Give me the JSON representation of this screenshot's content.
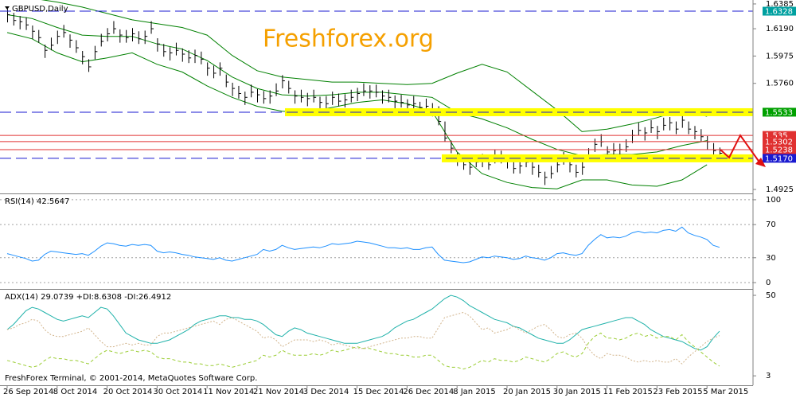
{
  "chart_data": [
    {
      "type": "ohlc",
      "title": "GBPUSD,Daily",
      "watermark": "Freshforex.org",
      "color": "#000000",
      "categories": [
        "26 Sep 2014",
        null,
        null,
        null,
        null,
        null,
        null,
        null,
        "8 Oct 2014",
        null,
        null,
        null,
        null,
        null,
        null,
        null,
        "20 Oct 2014",
        null,
        null,
        null,
        null,
        null,
        null,
        null,
        "30 Oct 2014",
        null,
        null,
        null,
        null,
        null,
        null,
        null,
        "11 Nov 2014",
        null,
        null,
        null,
        null,
        null,
        null,
        null,
        "21 Nov 2014",
        null,
        null,
        null,
        null,
        null,
        null,
        null,
        "3 Dec 2014",
        null,
        null,
        null,
        null,
        null,
        null,
        null,
        "15 Dec 2014",
        null,
        null,
        null,
        null,
        null,
        null,
        null,
        "26 Dec 2014",
        null,
        null,
        null,
        null,
        null,
        null,
        null,
        "8 Jan 2015",
        null,
        null,
        null,
        null,
        null,
        null,
        null,
        "20 Jan 2015",
        null,
        null,
        null,
        null,
        null,
        null,
        null,
        "30 Jan 2015",
        null,
        null,
        null,
        null,
        null,
        null,
        null,
        "11 Feb 2015",
        null,
        null,
        null,
        null,
        null,
        null,
        null,
        "23 Feb 2015",
        null,
        null,
        null,
        null,
        null,
        null,
        null,
        "5 Mar 2015",
        null,
        null
      ],
      "high": [
        1.6345,
        1.6315,
        1.629,
        1.628,
        1.6215,
        1.618,
        1.6065,
        1.612,
        1.6175,
        1.622,
        1.6145,
        1.61,
        1.6015,
        1.595,
        1.6055,
        1.615,
        1.6195,
        1.625,
        1.6185,
        1.618,
        1.6195,
        1.617,
        1.6175,
        1.625,
        1.6115,
        1.607,
        1.6045,
        1.608,
        1.6035,
        1.602,
        1.6025,
        1.601,
        1.5925,
        1.59,
        1.5925,
        1.583,
        1.5765,
        1.574,
        1.5695,
        1.575,
        1.5715,
        1.57,
        1.5705,
        1.576,
        1.5825,
        1.578,
        1.5705,
        1.571,
        1.5685,
        1.571,
        1.5655,
        1.566,
        1.5695,
        1.568,
        1.5675,
        1.571,
        1.5725,
        1.576,
        1.5745,
        1.575,
        1.5705,
        1.571,
        1.5665,
        1.567,
        1.5635,
        1.566,
        1.5615,
        1.564,
        1.5605,
        1.558,
        1.546,
        1.531,
        1.5215,
        1.518,
        1.5145,
        1.52,
        1.5205,
        1.518,
        1.5235,
        1.523,
        1.5195,
        1.515,
        1.5155,
        1.52,
        1.5145,
        1.512,
        1.5065,
        1.511,
        1.5165,
        1.522,
        1.5165,
        1.512,
        1.5145,
        1.525,
        1.5325,
        1.536,
        1.5265,
        1.529,
        1.5285,
        1.532,
        1.5395,
        1.545,
        1.5415,
        1.547,
        1.5425,
        1.549,
        1.5495,
        1.546,
        1.5515,
        1.546,
        1.5425,
        1.54,
        1.5345,
        1.529,
        1.5255
      ],
      "low": [
        1.624,
        1.6215,
        1.6185,
        1.618,
        1.611,
        1.608,
        1.596,
        1.602,
        1.607,
        1.612,
        1.604,
        1.6,
        1.591,
        1.585,
        1.595,
        1.605,
        1.609,
        1.615,
        1.608,
        1.608,
        1.609,
        1.607,
        1.607,
        1.615,
        1.601,
        1.597,
        1.594,
        1.598,
        1.593,
        1.592,
        1.592,
        1.591,
        1.582,
        1.58,
        1.582,
        1.573,
        1.566,
        1.564,
        1.559,
        1.565,
        1.561,
        1.56,
        1.56,
        1.566,
        1.572,
        1.568,
        1.56,
        1.561,
        1.558,
        1.561,
        1.555,
        1.556,
        1.559,
        1.558,
        1.557,
        1.561,
        1.562,
        1.566,
        1.564,
        1.565,
        1.56,
        1.561,
        1.556,
        1.557,
        1.553,
        1.556,
        1.551,
        1.554,
        1.55,
        1.543,
        1.53,
        1.521,
        1.511,
        1.508,
        1.504,
        1.51,
        1.51,
        1.508,
        1.513,
        1.513,
        1.509,
        1.505,
        1.505,
        1.51,
        1.504,
        1.502,
        1.496,
        1.501,
        1.506,
        1.512,
        1.506,
        1.502,
        1.504,
        1.515,
        1.522,
        1.526,
        1.516,
        1.519,
        1.518,
        1.522,
        1.529,
        1.535,
        1.531,
        1.537,
        1.532,
        1.539,
        1.539,
        1.536,
        1.541,
        1.536,
        1.532,
        1.53,
        1.524,
        1.519,
        1.515
      ],
      "close": [
        1.63,
        1.6255,
        1.6245,
        1.622,
        1.617,
        1.612,
        1.602,
        1.606,
        1.613,
        1.616,
        1.61,
        1.604,
        1.597,
        1.589,
        1.601,
        1.609,
        1.615,
        1.619,
        1.614,
        1.612,
        1.615,
        1.611,
        1.613,
        1.619,
        1.607,
        1.601,
        1.6,
        1.602,
        1.599,
        1.596,
        1.598,
        1.595,
        1.588,
        1.584,
        1.588,
        1.577,
        1.572,
        1.568,
        1.565,
        1.569,
        1.567,
        1.564,
        1.566,
        1.57,
        1.578,
        1.572,
        1.566,
        1.565,
        1.564,
        1.565,
        1.561,
        1.56,
        1.565,
        1.562,
        1.563,
        1.565,
        1.568,
        1.57,
        1.57,
        1.569,
        1.566,
        1.565,
        1.562,
        1.561,
        1.559,
        1.56,
        1.557,
        1.558,
        1.556,
        1.546,
        1.533,
        1.525,
        1.517,
        1.512,
        1.51,
        1.514,
        1.516,
        1.512,
        1.519,
        1.517,
        1.515,
        1.509,
        1.511,
        1.514,
        1.51,
        1.506,
        1.502,
        1.505,
        1.512,
        1.516,
        1.512,
        1.506,
        1.51,
        1.519,
        1.528,
        1.53,
        1.522,
        1.523,
        1.524,
        1.526,
        1.535,
        1.539,
        1.537,
        1.541,
        1.538,
        1.543,
        1.545,
        1.54,
        1.547,
        1.54,
        1.538,
        1.534,
        1.53,
        1.523,
        1.521
      ],
      "bands": {
        "color": "#008000",
        "x": [
          0,
          4,
          8,
          12,
          16,
          20,
          24,
          28,
          32,
          36,
          40,
          44,
          48,
          52,
          56,
          60,
          64,
          68,
          72,
          76,
          80,
          84,
          88,
          92,
          96,
          100,
          104,
          108,
          112
        ],
        "upper": [
          1.645,
          1.643,
          1.64,
          1.636,
          1.631,
          1.626,
          1.623,
          1.62,
          1.614,
          1.598,
          1.586,
          1.581,
          1.579,
          1.577,
          1.577,
          1.576,
          1.575,
          1.576,
          1.584,
          1.591,
          1.585,
          1.57,
          1.555,
          1.538,
          1.54,
          1.544,
          1.549,
          1.555,
          1.55
        ],
        "middle": [
          1.63,
          1.627,
          1.62,
          1.614,
          1.613,
          1.613,
          1.607,
          1.603,
          1.594,
          1.581,
          1.572,
          1.567,
          1.566,
          1.567,
          1.569,
          1.569,
          1.567,
          1.565,
          1.553,
          1.548,
          1.541,
          1.532,
          1.524,
          1.519,
          1.52,
          1.52,
          1.522,
          1.527,
          1.531
        ],
        "lower": [
          1.616,
          1.611,
          1.6,
          1.593,
          1.596,
          1.6,
          1.591,
          1.585,
          1.574,
          1.565,
          1.558,
          1.554,
          1.553,
          1.557,
          1.561,
          1.563,
          1.56,
          1.554,
          1.522,
          1.505,
          1.498,
          1.494,
          1.493,
          1.5,
          1.5,
          1.496,
          1.495,
          1.5,
          1.512
        ]
      },
      "levels": [
        {
          "value": 1.6328,
          "color": "#1a1ad0",
          "box": "#00a0a0",
          "style": "dashed",
          "highlight": false
        },
        {
          "value": 1.5533,
          "color": "#1a1ad0",
          "box": "#00a000",
          "style": "dashed",
          "highlight": true
        },
        {
          "value": 1.535,
          "color": "#e03030",
          "box": "#e03030",
          "style": "solid",
          "highlight": false
        },
        {
          "value": 1.5302,
          "color": "#e03030",
          "box": "#e03030",
          "style": "solid",
          "highlight": false
        },
        {
          "value": 1.5238,
          "color": "#e03030",
          "box": "#e03030",
          "style": "solid",
          "highlight": false
        },
        {
          "value": 1.517,
          "label": "1.5170",
          "color": "#1a1ad0",
          "box": "#1a1ad0",
          "style": "dashed",
          "highlight": true
        }
      ],
      "ylim": [
        1.49,
        1.6416
      ],
      "yticks": [
        1.6385,
        {
          "value": 1.619,
          "label": "1.6190"
        },
        1.5975,
        {
          "value": 1.576,
          "label": "1.5760"
        },
        1.4925
      ],
      "grid": false
    },
    {
      "type": "line",
      "label": "RSI(14) 42.5647",
      "color": "#1e90ff",
      "values": [
        35,
        33,
        31,
        29,
        26,
        27,
        34,
        38,
        37,
        36,
        35,
        34,
        35,
        33,
        38,
        44,
        48,
        47,
        45,
        44,
        46,
        45,
        46,
        45,
        38,
        36,
        37,
        36,
        34,
        33,
        31,
        30,
        29,
        28,
        30,
        27,
        26,
        28,
        30,
        32,
        34,
        40,
        38,
        40,
        45,
        42,
        40,
        41,
        42,
        43,
        42,
        44,
        47,
        46,
        47,
        48,
        50,
        49,
        48,
        46,
        44,
        42,
        42,
        41,
        42,
        40,
        40,
        42,
        43,
        34,
        27,
        26,
        25,
        24,
        25,
        28,
        31,
        30,
        32,
        31,
        30,
        28,
        29,
        32,
        30,
        29,
        27,
        30,
        35,
        36,
        34,
        33,
        35,
        45,
        52,
        58,
        54,
        55,
        54,
        56,
        60,
        62,
        60,
        61,
        60,
        63,
        64,
        62,
        67,
        60,
        57,
        55,
        52,
        45,
        42.5647
      ],
      "ylim": [
        -6.7,
        105.7
      ],
      "yticks": [
        0,
        30,
        70,
        100
      ],
      "grid": true
    },
    {
      "type": "line",
      "label": "ADX(14) 29.0739 +DI:8.6308 -DI:26.4912",
      "footer": "FreshForex Terminal, © 2001-2014, MetaQuotes Software Corp.",
      "series": [
        {
          "color": "#20b2aa",
          "dash": "none",
          "values": [
            30,
            33,
            37,
            41,
            43,
            42,
            40,
            38,
            36,
            35,
            36,
            37,
            38,
            37,
            40,
            43,
            42,
            38,
            33,
            28,
            26,
            24,
            23,
            22,
            22,
            23,
            24,
            26,
            28,
            30,
            33,
            35,
            36,
            37,
            38,
            38,
            37,
            37,
            36,
            36,
            35,
            33,
            30,
            27,
            26,
            29,
            31,
            30,
            28,
            27,
            26,
            25,
            24,
            23,
            22,
            22,
            22,
            23,
            24,
            25,
            26,
            28,
            31,
            33,
            35,
            36,
            38,
            40,
            42,
            45,
            48,
            50,
            49,
            47,
            44,
            42,
            40,
            38,
            36,
            35,
            34,
            32,
            31,
            29,
            27,
            25,
            24,
            23,
            22,
            22,
            24,
            27,
            30,
            31,
            32,
            33,
            34,
            35,
            36,
            37,
            37,
            35,
            33,
            30,
            28,
            26,
            25,
            24,
            23,
            21,
            19,
            18,
            20,
            25,
            29.0739
          ]
        },
        {
          "color": "#9acd32",
          "dash": "4 3",
          "values": [
            12,
            11,
            10,
            9,
            8,
            9,
            12,
            14,
            13,
            13,
            12,
            12,
            11,
            10,
            13,
            16,
            18,
            17,
            16,
            17,
            18,
            17,
            18,
            17,
            14,
            13,
            13,
            12,
            11,
            11,
            10,
            10,
            9,
            9,
            10,
            9,
            8,
            9,
            10,
            11,
            12,
            15,
            14,
            15,
            18,
            16,
            15,
            15,
            15,
            16,
            15,
            16,
            18,
            17,
            18,
            19,
            20,
            19,
            19,
            18,
            17,
            16,
            16,
            15,
            15,
            14,
            14,
            15,
            15,
            12,
            9,
            8,
            8,
            7,
            8,
            10,
            12,
            11,
            13,
            12,
            12,
            11,
            12,
            14,
            13,
            12,
            11,
            13,
            16,
            17,
            15,
            14,
            16,
            22,
            26,
            28,
            25,
            25,
            24,
            25,
            27,
            28,
            26,
            27,
            25,
            26,
            26,
            24,
            27,
            23,
            20,
            17,
            14,
            11,
            8.6308
          ]
        },
        {
          "color": "#d2b48c",
          "dash": "2 2",
          "values": [
            30,
            31,
            33,
            34,
            36,
            35,
            30,
            27,
            26,
            26,
            27,
            28,
            29,
            31,
            27,
            23,
            20,
            20,
            21,
            22,
            21,
            22,
            21,
            21,
            26,
            28,
            28,
            29,
            30,
            31,
            32,
            33,
            34,
            35,
            33,
            36,
            37,
            35,
            33,
            31,
            29,
            25,
            26,
            24,
            20,
            22,
            24,
            24,
            24,
            23,
            24,
            23,
            21,
            22,
            21,
            20,
            19,
            19,
            20,
            21,
            22,
            23,
            24,
            25,
            25,
            26,
            26,
            25,
            25,
            31,
            37,
            38,
            39,
            40,
            38,
            34,
            30,
            31,
            28,
            29,
            30,
            32,
            30,
            28,
            30,
            32,
            33,
            30,
            26,
            25,
            27,
            28,
            25,
            19,
            15,
            13,
            16,
            15,
            15,
            14,
            12,
            11,
            12,
            11,
            12,
            11,
            11,
            13,
            10,
            14,
            17,
            20,
            23,
            25,
            26.4912
          ]
        }
      ],
      "ylim": [
        -2.5,
        52.8
      ],
      "yticks": [
        50,
        3
      ],
      "grid": false
    }
  ]
}
